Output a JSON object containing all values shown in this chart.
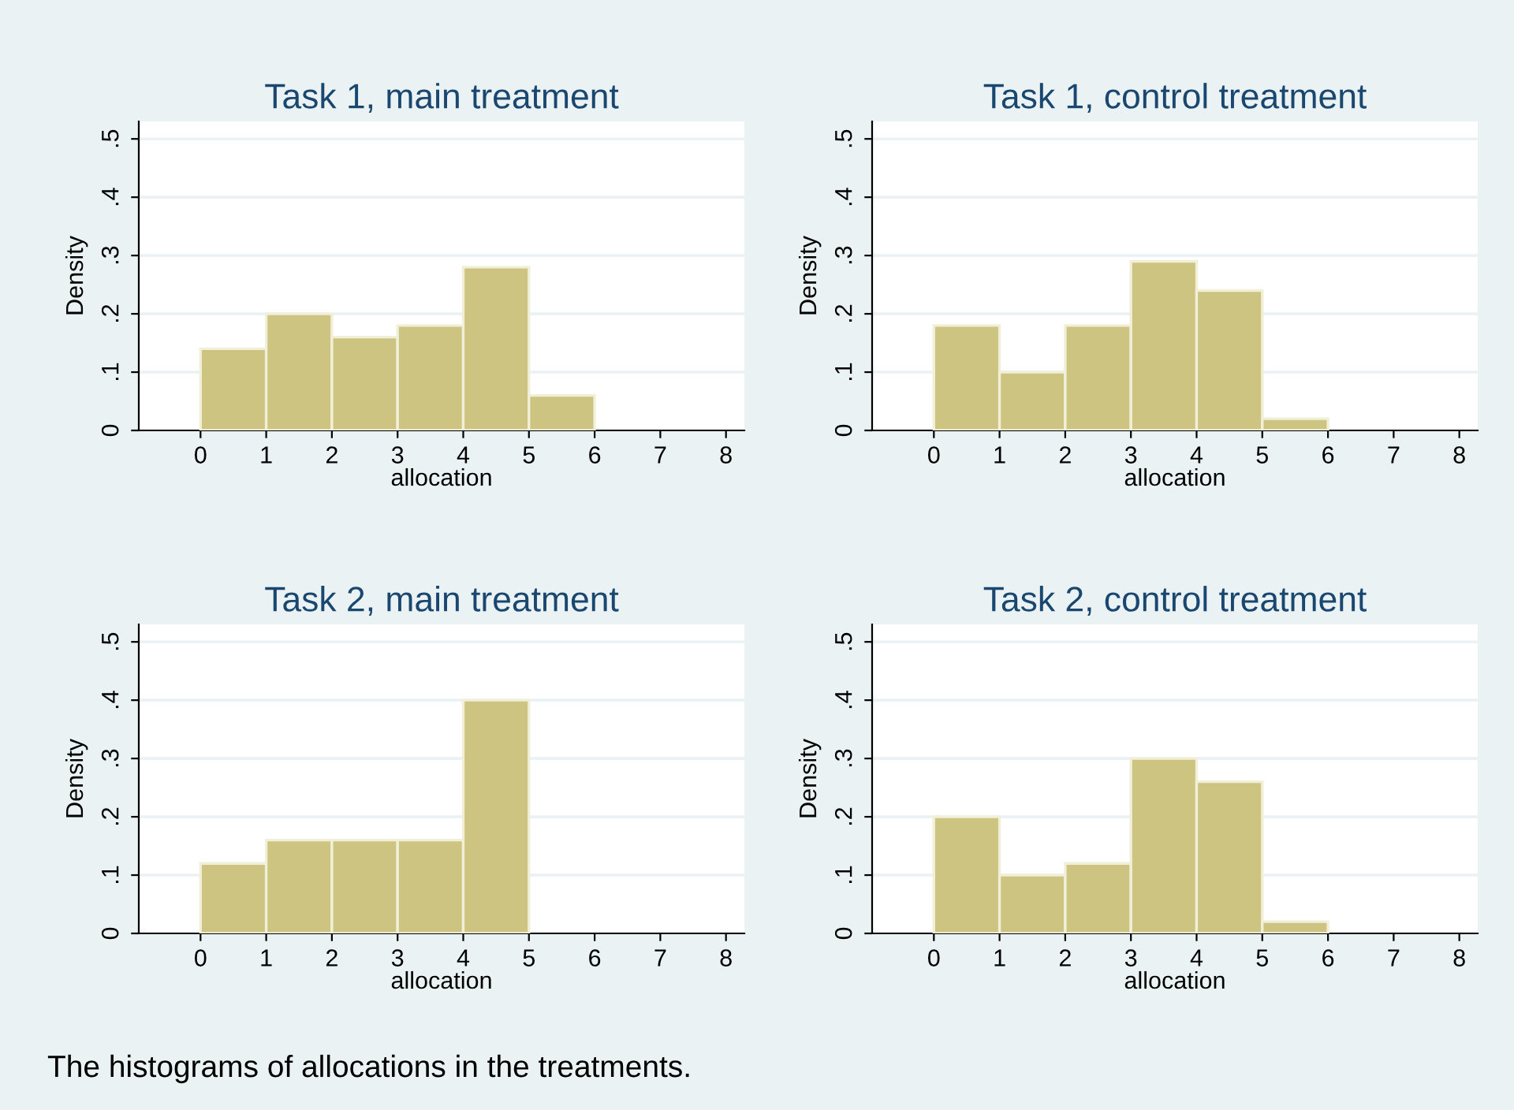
{
  "chart_data": [
    {
      "type": "histogram",
      "title": "Task 1, main treatment",
      "xlabel": "allocation",
      "ylabel": "Density",
      "bins": [
        0,
        1,
        2,
        3,
        4,
        5,
        6
      ],
      "values": [
        0.14,
        0.2,
        0.16,
        0.18,
        0.28,
        0.06
      ],
      "color": "#cdc482",
      "xlim": [
        -0.94,
        8.28
      ],
      "ylim": [
        0,
        0.53
      ],
      "xticks": [
        0,
        1,
        2,
        3,
        4,
        5,
        6,
        7,
        8
      ],
      "yticks": [
        0,
        {
          "value": 0.1,
          "label": ".1"
        },
        {
          "value": 0.2,
          "label": ".2"
        },
        {
          "value": 0.3,
          "label": ".3"
        },
        {
          "value": 0.4,
          "label": ".4"
        },
        {
          "value": 0.5,
          "label": ".5"
        }
      ],
      "grid": "y"
    },
    {
      "type": "histogram",
      "title": "Task 1, control treatment",
      "xlabel": "allocation",
      "ylabel": "Density",
      "bins": [
        0,
        1,
        2,
        3,
        4,
        5,
        6
      ],
      "values": [
        0.18,
        0.1,
        0.18,
        0.29,
        0.24,
        0.02
      ],
      "color": "#cdc482",
      "xlim": [
        -0.94,
        8.28
      ],
      "ylim": [
        0,
        0.53
      ],
      "xticks": [
        0,
        1,
        2,
        3,
        4,
        5,
        6,
        7,
        8
      ],
      "yticks": [
        0,
        {
          "value": 0.1,
          "label": ".1"
        },
        {
          "value": 0.2,
          "label": ".2"
        },
        {
          "value": 0.3,
          "label": ".3"
        },
        {
          "value": 0.4,
          "label": ".4"
        },
        {
          "value": 0.5,
          "label": ".5"
        }
      ],
      "grid": "y"
    },
    {
      "type": "histogram",
      "title": "Task 2, main treatment",
      "xlabel": "allocation",
      "ylabel": "Density",
      "bins": [
        0,
        1,
        2,
        3,
        4,
        5
      ],
      "values": [
        0.12,
        0.16,
        0.16,
        0.16,
        0.4
      ],
      "color": "#cdc482",
      "xlim": [
        -0.94,
        8.28
      ],
      "ylim": [
        0,
        0.53
      ],
      "xticks": [
        0,
        1,
        2,
        3,
        4,
        5,
        6,
        7,
        8
      ],
      "yticks": [
        0,
        {
          "value": 0.1,
          "label": ".1"
        },
        {
          "value": 0.2,
          "label": ".2"
        },
        {
          "value": 0.3,
          "label": ".3"
        },
        {
          "value": 0.4,
          "label": ".4"
        },
        {
          "value": 0.5,
          "label": ".5"
        }
      ],
      "grid": "y"
    },
    {
      "type": "histogram",
      "title": "Task 2, control treatment",
      "xlabel": "allocation",
      "ylabel": "Density",
      "bins": [
        0,
        1,
        2,
        3,
        4,
        5,
        6
      ],
      "values": [
        0.2,
        0.1,
        0.12,
        0.3,
        0.26,
        0.02
      ],
      "color": "#cdc482",
      "xlim": [
        -0.94,
        8.28
      ],
      "ylim": [
        0,
        0.53
      ],
      "xticks": [
        0,
        1,
        2,
        3,
        4,
        5,
        6,
        7,
        8
      ],
      "yticks": [
        0,
        {
          "value": 0.1,
          "label": ".1"
        },
        {
          "value": 0.2,
          "label": ".2"
        },
        {
          "value": 0.3,
          "label": ".3"
        },
        {
          "value": 0.4,
          "label": ".4"
        },
        {
          "value": 0.5,
          "label": ".5"
        }
      ],
      "grid": "y",
      "annotations": [
        "The histograms of allocations in the treatments."
      ]
    }
  ]
}
